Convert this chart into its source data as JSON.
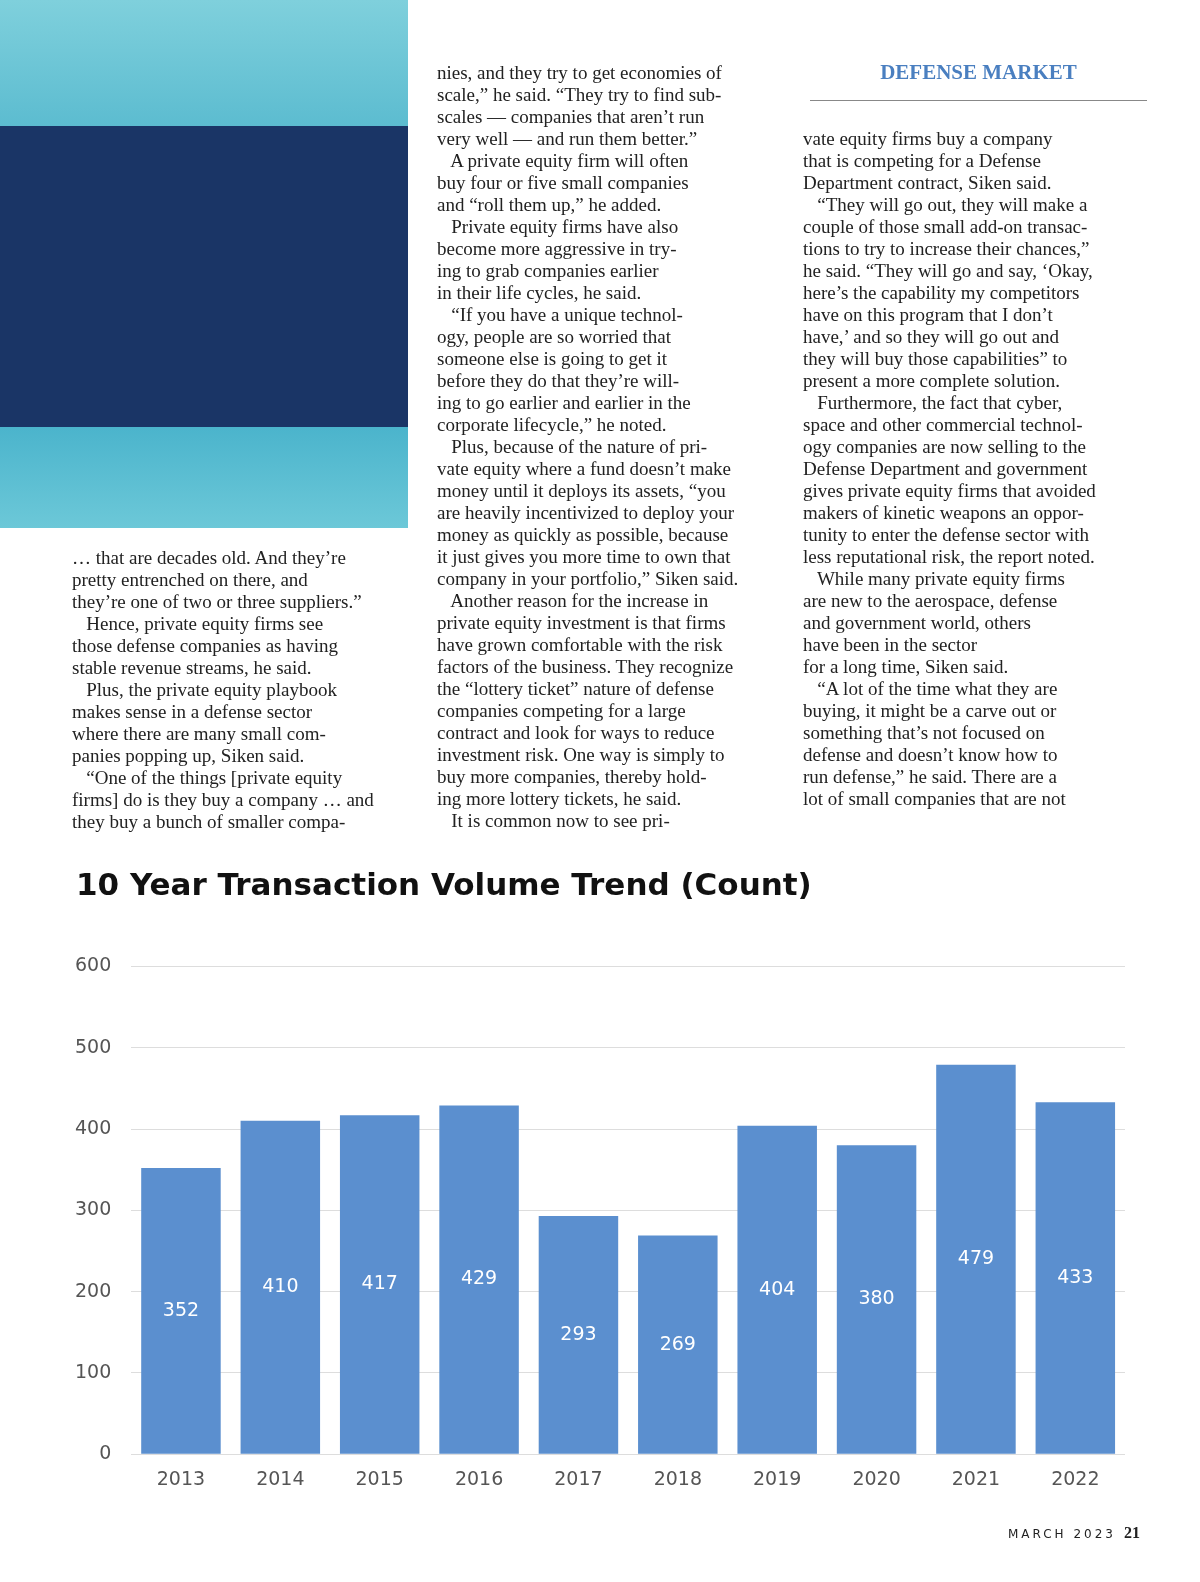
{
  "chart_data": {
    "type": "bar",
    "title": "10 Year Transaction Volume Trend (Count)",
    "categories": [
      "2013",
      "2014",
      "2015",
      "2016",
      "2017",
      "2018",
      "2019",
      "2020",
      "2021",
      "2022"
    ],
    "values": [
      352,
      410,
      417,
      429,
      293,
      269,
      404,
      380,
      479,
      433
    ],
    "color": "#5b8fcf",
    "ylim": [
      0,
      600
    ],
    "yticks": [
      0,
      100,
      200,
      300,
      400,
      500,
      600
    ],
    "grid": "y",
    "data_labels": true,
    "annotations": [
      "DEFENSE MARKET",
      "… that are decades old. And they’re\npretty entrenched on there, and\nthey’re one of two or three suppliers.”\n   Hence, private equity firms see\nthose defense companies as having\nstable revenue streams, he said.\n   Plus, the private equity playbook\nmakes sense in a defense sector\nwhere there are many small com-\npanies popping up, Siken said.\n   “One of the things [private equity\nfirms] do is they buy a company … and\nthey buy a bunch of smaller compa-",
      "nies, and they try to get economies of\nscale,” he said. “They try to find sub-\nscales — companies that aren’t run\nvery well — and run them better.”\n   A private equity firm will often\nbuy four or five small companies\nand “roll them up,” he added.\n   Private equity firms have also\nbecome more aggressive in try-\ning to grab companies earlier\nin their life cycles, he said.\n   “If you have a unique technol-\nogy, people are so worried that\nsomeone else is going to get it\nbefore they do that they’re will-\ning to go earlier and earlier in the\ncorporate lifecycle,” he noted.\n   Plus, because of the nature of pri-\nvate equity where a fund doesn’t make\nmoney until it deploys its assets, “you\nare heavily incentivized to deploy your\nmoney as quickly as possible, because\nit just gives you more time to own that\ncompany in your portfolio,” Siken said.\n   Another reason for the increase in\nprivate equity investment is that firms\nhave grown comfortable with the risk\nfactors of the business. They recognize\nthe “lottery ticket” nature of defense\ncompanies competing for a large\ncontract and look for ways to reduce\ninvestment risk. One way is simply to\nbuy more companies, thereby hold-\ning more lottery tickets, he said.\n   It is common now to see pri-",
      "vate equity firms buy a company\nthat is competing for a Defense\nDepartment contract, Siken said.\n   “They will go out, they will make a\ncouple of those small add-on transac-\ntions to try to increase their chances,”\nhe said. “They will go and say, ‘Okay,\nhere’s the capability my competitors\nhave on this program that I don’t\nhave,’ and so they will go out and\nthey will buy those capabilities” to\npresent a more complete solution.\n   Furthermore, the fact that cyber,\nspace and other commercial technol-\nogy companies are now selling to the\nDefense Department and government\ngives private equity firms that avoided\nmakers of kinetic weapons an oppor-\ntunity to enter the defense sector with\nless reputational risk, the report noted.\n   While many private equity firms\nare new to the aerospace, defense\nand government world, others\nhave been in the sector\nfor a long time, Siken said.\n   “A lot of the time what they are\nbuying, it might be a carve out or\nsomething that’s not focused on\ndefense and doesn’t know how to\nrun defense,” he said. There are a\nlot of small companies that are not",
      "MARCH 2023",
      "21"
    ]
  }
}
